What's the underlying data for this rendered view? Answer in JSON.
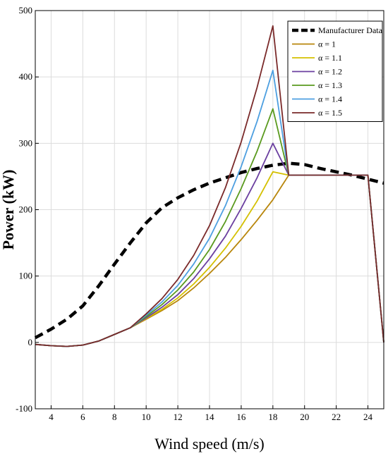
{
  "chart_data": {
    "type": "line",
    "title": "",
    "xlabel": "Wind speed (m/s)",
    "ylabel": "Power (kW)",
    "xlim": [
      3,
      25
    ],
    "ylim": [
      -100,
      500
    ],
    "xticks": [
      4,
      6,
      8,
      10,
      12,
      14,
      16,
      18,
      20,
      22,
      24
    ],
    "yticks": [
      -100,
      0,
      100,
      200,
      300,
      400,
      500
    ],
    "grid": true,
    "legend_position": "top-right",
    "series": [
      {
        "name": "Manufacturer Data",
        "color": "#000000",
        "style": "dashed",
        "x": [
          3,
          4,
          5,
          6,
          7,
          8,
          9,
          10,
          11,
          12,
          13,
          14,
          15,
          16,
          17,
          18,
          19,
          20,
          21,
          22,
          23,
          24,
          25
        ],
        "y": [
          7,
          20,
          35,
          55,
          85,
          118,
          150,
          180,
          203,
          218,
          230,
          240,
          248,
          256,
          262,
          267,
          270,
          268,
          262,
          257,
          252,
          246,
          240
        ]
      },
      {
        "name": "α = 1",
        "color": "#B8860B",
        "style": "solid",
        "x": [
          3,
          4,
          5,
          6,
          7,
          8,
          9,
          10,
          11,
          12,
          13,
          14,
          15,
          16,
          17,
          18,
          19,
          20,
          21,
          22,
          23,
          24,
          25
        ],
        "y": [
          -3,
          -5,
          -6,
          -4,
          2,
          12,
          22,
          35,
          48,
          63,
          82,
          104,
          128,
          155,
          184,
          215,
          252,
          252,
          252,
          252,
          252,
          252,
          0
        ]
      },
      {
        "name": "α = 1.1",
        "color": "#D4C000",
        "style": "solid",
        "x": [
          3,
          4,
          5,
          6,
          7,
          8,
          9,
          10,
          11,
          12,
          13,
          14,
          15,
          16,
          17,
          18,
          19,
          20,
          21,
          22,
          23,
          24,
          25
        ],
        "y": [
          -3,
          -5,
          -6,
          -4,
          2,
          12,
          22,
          36,
          50,
          67,
          88,
          113,
          142,
          175,
          213,
          257,
          252,
          252,
          252,
          252,
          252,
          252,
          0
        ]
      },
      {
        "name": "α = 1.2",
        "color": "#6B3FA0",
        "style": "solid",
        "x": [
          3,
          4,
          5,
          6,
          7,
          8,
          9,
          10,
          11,
          12,
          13,
          14,
          15,
          16,
          17,
          18,
          19,
          20,
          21,
          22,
          23,
          24,
          25
        ],
        "y": [
          -3,
          -5,
          -6,
          -4,
          2,
          12,
          22,
          37,
          53,
          72,
          96,
          126,
          160,
          202,
          248,
          300,
          252,
          252,
          252,
          252,
          252,
          252,
          0
        ]
      },
      {
        "name": "α = 1.3",
        "color": "#5A9A1E",
        "style": "solid",
        "x": [
          3,
          4,
          5,
          6,
          7,
          8,
          9,
          10,
          11,
          12,
          13,
          14,
          15,
          16,
          17,
          18,
          19,
          20,
          21,
          22,
          23,
          24,
          25
        ],
        "y": [
          -3,
          -5,
          -6,
          -4,
          2,
          12,
          22,
          39,
          57,
          79,
          106,
          140,
          182,
          232,
          288,
          352,
          252,
          252,
          252,
          252,
          252,
          252,
          0
        ]
      },
      {
        "name": "α = 1.4",
        "color": "#4D9FE0",
        "style": "solid",
        "x": [
          3,
          4,
          5,
          6,
          7,
          8,
          9,
          10,
          11,
          12,
          13,
          14,
          15,
          16,
          17,
          18,
          19,
          20,
          21,
          22,
          23,
          24,
          25
        ],
        "y": [
          -3,
          -5,
          -6,
          -4,
          2,
          12,
          22,
          41,
          61,
          86,
          118,
          157,
          206,
          265,
          333,
          410,
          252,
          252,
          252,
          252,
          252,
          252,
          0
        ]
      },
      {
        "name": "α = 1.5",
        "color": "#7A2A2A",
        "style": "solid",
        "x": [
          3,
          4,
          5,
          6,
          7,
          8,
          9,
          10,
          11,
          12,
          13,
          14,
          15,
          16,
          17,
          18,
          19,
          20,
          21,
          22,
          23,
          24,
          25
        ],
        "y": [
          -3,
          -5,
          -6,
          -4,
          2,
          12,
          22,
          43,
          66,
          95,
          131,
          176,
          233,
          302,
          384,
          477,
          252,
          252,
          252,
          252,
          252,
          252,
          0
        ]
      }
    ]
  }
}
